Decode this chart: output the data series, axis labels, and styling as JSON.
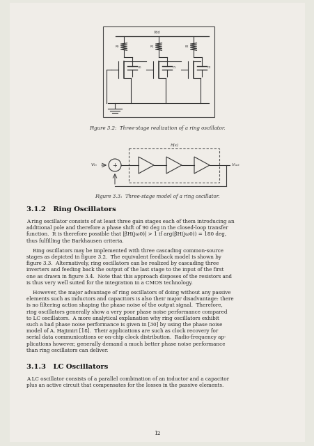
{
  "bg_color": "#e8e8e0",
  "page_bg": "#f0ede8",
  "text_color": "#222222",
  "fig_caption_color": "#333333",
  "heading_color": "#111111",
  "section_312_title": "3.1.2   Ring Oscillators",
  "section_313_title": "3.1.3   LC Oscillators",
  "fig32_caption": "Figure 3.2:  Three-stage realization of a ring oscillator.",
  "fig33_caption": "Figure 3.3:  Three-stage model of a ring oscillator.",
  "page_number": "12"
}
